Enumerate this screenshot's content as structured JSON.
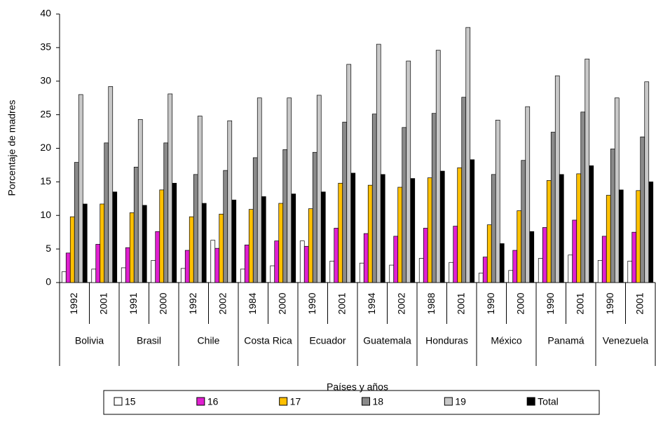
{
  "chart_data": {
    "type": "bar",
    "y_label": "Porcentaje de madres",
    "x_label": "Países y años",
    "categories": [
      "1992",
      "2001",
      "1991",
      "2000",
      "1992",
      "2002",
      "1984",
      "2000",
      "1990",
      "2001",
      "1994",
      "2002",
      "1988",
      "2001",
      "1990",
      "2000",
      "1990",
      "2001",
      "1990",
      "2001"
    ],
    "groups": [
      "Bolivia",
      "Brasil",
      "Chile",
      "Costa Rica",
      "Ecuador",
      "Guatemala",
      "Honduras",
      "México",
      "Panamá",
      "Venezuela"
    ],
    "ylim": [
      0,
      40
    ],
    "yticks": [
      0,
      5,
      10,
      15,
      20,
      25,
      30,
      35,
      40
    ],
    "legend": "bottom",
    "series": [
      {
        "name": "15",
        "color": "#ffffff",
        "values": [
          1.6,
          2.0,
          2.2,
          3.3,
          2.1,
          6.3,
          2.0,
          2.5,
          6.2,
          3.2,
          2.9,
          2.6,
          3.6,
          3.0,
          1.4,
          1.8,
          3.6,
          4.1,
          3.3,
          3.2
        ]
      },
      {
        "name": "16",
        "color": "#e020d0",
        "values": [
          4.4,
          5.7,
          5.2,
          7.6,
          4.8,
          5.1,
          5.6,
          6.2,
          5.4,
          8.1,
          7.3,
          6.9,
          8.1,
          8.4,
          3.8,
          4.8,
          8.2,
          9.3,
          6.9,
          7.5
        ]
      },
      {
        "name": "17",
        "color": "#ffc000",
        "values": [
          9.8,
          11.7,
          10.4,
          13.8,
          9.8,
          10.2,
          10.9,
          11.8,
          11.0,
          14.8,
          14.5,
          14.2,
          15.6,
          17.1,
          8.6,
          10.7,
          15.2,
          16.2,
          13.0,
          13.7
        ]
      },
      {
        "name": "18",
        "color": "#8a8a8a",
        "values": [
          17.9,
          20.8,
          17.2,
          20.8,
          16.1,
          16.7,
          18.6,
          19.8,
          19.4,
          23.9,
          25.1,
          23.1,
          25.2,
          27.6,
          16.1,
          18.2,
          22.4,
          25.4,
          19.9,
          21.7
        ]
      },
      {
        "name": "19",
        "color": "#c8c8c8",
        "values": [
          28.0,
          29.2,
          24.3,
          28.1,
          24.8,
          24.1,
          27.5,
          27.5,
          27.9,
          32.5,
          35.5,
          33.0,
          34.6,
          38.0,
          24.2,
          26.2,
          30.8,
          33.3,
          27.5,
          29.9
        ]
      },
      {
        "name": "Total",
        "color": "#000000",
        "values": [
          11.7,
          13.5,
          11.5,
          14.8,
          11.8,
          12.3,
          12.8,
          13.2,
          13.5,
          16.3,
          16.1,
          15.5,
          16.6,
          18.3,
          5.8,
          7.6,
          16.1,
          17.4,
          13.8,
          15.0
        ]
      }
    ]
  }
}
